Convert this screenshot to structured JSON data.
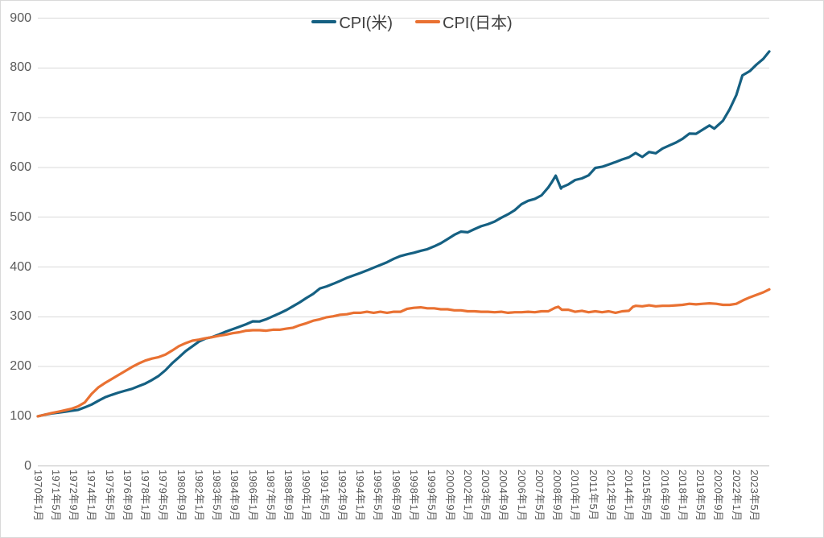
{
  "colors": {
    "us_line": "#156082",
    "japan_line": "#E97132",
    "gridline": "#d9d9d9",
    "axis_line": "#bfbfbf",
    "tick_text": "#595959",
    "legend_text": "#404040",
    "background": "#ffffff",
    "border": "#d9d9d9"
  },
  "chart_data": {
    "type": "line",
    "title": "",
    "legend_position": "top-center",
    "grid": "horizontal",
    "y_axis": {
      "min": 0,
      "max": 900,
      "step": 100,
      "tick_labels": [
        "0",
        "100",
        "200",
        "300",
        "400",
        "500",
        "600",
        "700",
        "800",
        "900"
      ]
    },
    "x_axis": {
      "unit": "year-month",
      "tick_interval_months": 16,
      "tick_labels": [
        "1970年1月",
        "1971年5月",
        "1972年9月",
        "1974年1月",
        "1975年5月",
        "1976年9月",
        "1978年1月",
        "1979年5月",
        "1980年9月",
        "1982年1月",
        "1983年5月",
        "1984年9月",
        "1986年1月",
        "1987年5月",
        "1988年9月",
        "1990年1月",
        "1991年5月",
        "1992年9月",
        "1994年1月",
        "1995年5月",
        "1996年9月",
        "1998年1月",
        "1999年5月",
        "2000年9月",
        "2002年1月",
        "2003年5月",
        "2004年9月",
        "2006年1月",
        "2007年5月",
        "2008年9月",
        "2010年1月",
        "2011年5月",
        "2012年9月",
        "2014年1月",
        "2015年5月",
        "2016年9月",
        "2018年1月",
        "2019年5月",
        "2020年9月",
        "2022年1月",
        "2023年5月"
      ],
      "data_start_year": 1970.0,
      "data_end_year": 2024.45
    },
    "series": [
      {
        "name": "CPI(米)",
        "color": "#156082",
        "points": [
          [
            1970,
            100
          ],
          [
            1970.5,
            103
          ],
          [
            1971,
            105.6
          ],
          [
            1971.5,
            107.3
          ],
          [
            1972,
            109
          ],
          [
            1972.5,
            111
          ],
          [
            1973,
            113
          ],
          [
            1973.5,
            118
          ],
          [
            1974,
            123.6
          ],
          [
            1974.5,
            131
          ],
          [
            1975,
            138.2
          ],
          [
            1975.5,
            143
          ],
          [
            1976,
            147.5
          ],
          [
            1976.5,
            151.5
          ],
          [
            1977,
            155.2
          ],
          [
            1977.5,
            160.5
          ],
          [
            1978,
            165.8
          ],
          [
            1978.5,
            173
          ],
          [
            1979,
            181.2
          ],
          [
            1979.5,
            192.5
          ],
          [
            1980,
            206.4
          ],
          [
            1980.5,
            218.5
          ],
          [
            1981,
            230.8
          ],
          [
            1981.5,
            240.5
          ],
          [
            1982,
            250.1
          ],
          [
            1982.5,
            256.5
          ],
          [
            1983,
            259.4
          ],
          [
            1983.5,
            264.5
          ],
          [
            1984,
            270.3
          ],
          [
            1984.5,
            275
          ],
          [
            1985,
            279.8
          ],
          [
            1985.5,
            285
          ],
          [
            1986,
            290.7
          ],
          [
            1986.5,
            290.5
          ],
          [
            1987,
            295
          ],
          [
            1987.5,
            301
          ],
          [
            1988,
            306.9
          ],
          [
            1988.5,
            313.5
          ],
          [
            1989,
            321.2
          ],
          [
            1989.5,
            329
          ],
          [
            1990,
            337.9
          ],
          [
            1990.5,
            346
          ],
          [
            1991,
            357
          ],
          [
            1991.5,
            361
          ],
          [
            1992,
            366.3
          ],
          [
            1992.5,
            372
          ],
          [
            1993,
            378.2
          ],
          [
            1993.5,
            383
          ],
          [
            1994,
            387.8
          ],
          [
            1994.5,
            393
          ],
          [
            1995,
            398.7
          ],
          [
            1995.5,
            404
          ],
          [
            1996,
            409.5
          ],
          [
            1996.5,
            416.5
          ],
          [
            1997,
            422
          ],
          [
            1997.5,
            425.5
          ],
          [
            1998,
            428.6
          ],
          [
            1998.5,
            432.5
          ],
          [
            1999,
            435.8
          ],
          [
            1999.5,
            441.5
          ],
          [
            2000,
            447.7
          ],
          [
            2000.5,
            456
          ],
          [
            2001,
            464.5
          ],
          [
            2001.5,
            471
          ],
          [
            2002,
            469.8
          ],
          [
            2002.5,
            476
          ],
          [
            2003,
            481.9
          ],
          [
            2003.5,
            486
          ],
          [
            2004,
            491.2
          ],
          [
            2004.5,
            499
          ],
          [
            2005,
            505.8
          ],
          [
            2005.5,
            514
          ],
          [
            2006,
            526
          ],
          [
            2006.5,
            533
          ],
          [
            2007,
            536.9
          ],
          [
            2007.5,
            544
          ],
          [
            2008,
            559.9
          ],
          [
            2008.25,
            570
          ],
          [
            2008.55,
            583.5
          ],
          [
            2008.95,
            557.6
          ],
          [
            2009,
            560
          ],
          [
            2009.5,
            566
          ],
          [
            2010,
            574.8
          ],
          [
            2010.5,
            578
          ],
          [
            2011,
            584.1
          ],
          [
            2011.5,
            599
          ],
          [
            2012,
            601.3
          ],
          [
            2012.5,
            606
          ],
          [
            2013,
            610.9
          ],
          [
            2013.5,
            616
          ],
          [
            2014,
            620.4
          ],
          [
            2014.5,
            629
          ],
          [
            2015,
            621
          ],
          [
            2015.5,
            631
          ],
          [
            2016,
            628.4
          ],
          [
            2016.5,
            638
          ],
          [
            2017,
            644
          ],
          [
            2017.5,
            650
          ],
          [
            2018,
            657.6
          ],
          [
            2018.5,
            668
          ],
          [
            2019,
            667.6
          ],
          [
            2019.5,
            676
          ],
          [
            2020,
            684.3
          ],
          [
            2020.35,
            678
          ],
          [
            2020.6,
            684
          ],
          [
            2021,
            693.9
          ],
          [
            2021.5,
            717
          ],
          [
            2022,
            745.7
          ],
          [
            2022.45,
            785
          ],
          [
            2023,
            793.6
          ],
          [
            2023.5,
            806.7
          ],
          [
            2024,
            818.1
          ],
          [
            2024.45,
            833
          ]
        ]
      },
      {
        "name": "CPI(日本)",
        "color": "#E97132",
        "points": [
          [
            1970,
            100
          ],
          [
            1970.5,
            103
          ],
          [
            1971,
            106.5
          ],
          [
            1971.5,
            109
          ],
          [
            1972,
            112
          ],
          [
            1972.5,
            115
          ],
          [
            1973,
            120
          ],
          [
            1973.5,
            128
          ],
          [
            1974,
            145
          ],
          [
            1974.5,
            158
          ],
          [
            1975,
            167
          ],
          [
            1975.5,
            175
          ],
          [
            1976,
            183
          ],
          [
            1976.5,
            191
          ],
          [
            1977,
            199
          ],
          [
            1977.5,
            206
          ],
          [
            1978,
            212
          ],
          [
            1978.5,
            216
          ],
          [
            1979,
            219
          ],
          [
            1979.5,
            224
          ],
          [
            1980,
            232
          ],
          [
            1980.5,
            241
          ],
          [
            1981,
            247
          ],
          [
            1981.5,
            252
          ],
          [
            1982,
            254
          ],
          [
            1982.5,
            257
          ],
          [
            1983,
            259
          ],
          [
            1983.5,
            262
          ],
          [
            1984,
            264
          ],
          [
            1984.5,
            267
          ],
          [
            1985,
            269
          ],
          [
            1985.5,
            272
          ],
          [
            1986,
            273
          ],
          [
            1986.5,
            273
          ],
          [
            1987,
            272
          ],
          [
            1987.5,
            274
          ],
          [
            1988,
            274
          ],
          [
            1988.5,
            276
          ],
          [
            1989,
            278
          ],
          [
            1989.5,
            283
          ],
          [
            1990,
            287
          ],
          [
            1990.5,
            292
          ],
          [
            1991,
            295
          ],
          [
            1991.5,
            299
          ],
          [
            1992,
            301
          ],
          [
            1992.5,
            304
          ],
          [
            1993,
            305
          ],
          [
            1993.5,
            308
          ],
          [
            1994,
            308
          ],
          [
            1994.5,
            310
          ],
          [
            1995,
            308
          ],
          [
            1995.5,
            310
          ],
          [
            1996,
            308
          ],
          [
            1996.5,
            310
          ],
          [
            1997,
            310
          ],
          [
            1997.5,
            316
          ],
          [
            1998,
            318
          ],
          [
            1998.5,
            319
          ],
          [
            1999,
            317
          ],
          [
            1999.5,
            317
          ],
          [
            2000,
            315
          ],
          [
            2000.5,
            315
          ],
          [
            2001,
            313
          ],
          [
            2001.5,
            313
          ],
          [
            2002,
            311
          ],
          [
            2002.5,
            311
          ],
          [
            2003,
            310
          ],
          [
            2003.5,
            310
          ],
          [
            2004,
            309
          ],
          [
            2004.5,
            310
          ],
          [
            2005,
            308
          ],
          [
            2005.5,
            309
          ],
          [
            2006,
            309
          ],
          [
            2006.5,
            310
          ],
          [
            2007,
            309
          ],
          [
            2007.5,
            311
          ],
          [
            2008,
            311
          ],
          [
            2008.5,
            318
          ],
          [
            2008.75,
            320
          ],
          [
            2009,
            314
          ],
          [
            2009.5,
            314
          ],
          [
            2010,
            310
          ],
          [
            2010.5,
            312
          ],
          [
            2011,
            309
          ],
          [
            2011.5,
            311
          ],
          [
            2012,
            309
          ],
          [
            2012.5,
            311
          ],
          [
            2013,
            308
          ],
          [
            2013.5,
            311
          ],
          [
            2014,
            312
          ],
          [
            2014.3,
            320
          ],
          [
            2014.5,
            322
          ],
          [
            2015,
            321
          ],
          [
            2015.5,
            323
          ],
          [
            2016,
            321
          ],
          [
            2016.5,
            322
          ],
          [
            2017,
            322
          ],
          [
            2017.5,
            323
          ],
          [
            2018,
            324
          ],
          [
            2018.5,
            326
          ],
          [
            2019,
            325
          ],
          [
            2019.5,
            326
          ],
          [
            2020,
            327
          ],
          [
            2020.5,
            326
          ],
          [
            2021,
            324
          ],
          [
            2021.5,
            324
          ],
          [
            2022,
            326
          ],
          [
            2022.5,
            333
          ],
          [
            2023,
            339
          ],
          [
            2023.5,
            344
          ],
          [
            2024,
            349
          ],
          [
            2024.45,
            355
          ]
        ]
      }
    ]
  }
}
